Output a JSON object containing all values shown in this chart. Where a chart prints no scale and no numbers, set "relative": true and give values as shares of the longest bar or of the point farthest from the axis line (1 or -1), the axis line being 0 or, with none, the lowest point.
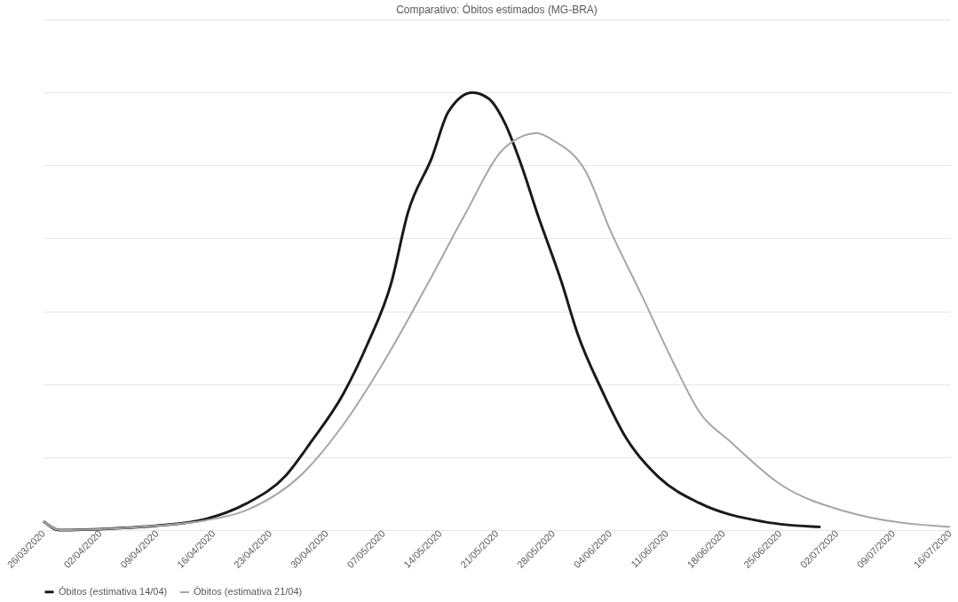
{
  "chart_data": {
    "type": "line",
    "title": "Comparativo: Óbitos estimados (MG-BRA)",
    "relative": true,
    "grid": "y",
    "legend": "bottom",
    "line_style": "solid",
    "marker": "none",
    "xlim": [
      "2020-03-26",
      "2020-07-16"
    ],
    "xticks": [
      {
        "value": "2020-03-26",
        "label": "26/03/2020"
      },
      {
        "value": "2020-04-02",
        "label": "02/04/2020"
      },
      {
        "value": "2020-04-09",
        "label": "09/04/2020"
      },
      {
        "value": "2020-04-16",
        "label": "16/04/2020"
      },
      {
        "value": "2020-04-23",
        "label": "23/04/2020"
      },
      {
        "value": "2020-04-30",
        "label": "30/04/2020"
      },
      {
        "value": "2020-05-07",
        "label": "07/05/2020"
      },
      {
        "value": "2020-05-14",
        "label": "14/05/2020"
      },
      {
        "value": "2020-05-21",
        "label": "21/05/2020"
      },
      {
        "value": "2020-05-28",
        "label": "28/05/2020"
      },
      {
        "value": "2020-06-04",
        "label": "04/06/2020"
      },
      {
        "value": "2020-06-11",
        "label": "11/06/2020"
      },
      {
        "value": "2020-06-18",
        "label": "18/06/2020"
      },
      {
        "value": "2020-06-25",
        "label": "25/06/2020"
      },
      {
        "value": "2020-07-02",
        "label": "02/07/2020"
      },
      {
        "value": "2020-07-09",
        "label": "09/07/2020"
      },
      {
        "value": "2020-07-16",
        "label": "16/07/2020"
      }
    ],
    "series": [
      {
        "name": "Óbitos (estimativa 14/04)",
        "color": "#1a1a1a",
        "x": [
          "2020-03-26",
          "2020-03-28",
          "2020-04-03",
          "2020-04-09",
          "2020-04-15",
          "2020-04-20",
          "2020-04-25",
          "2020-04-28",
          "2020-05-02",
          "2020-05-05",
          "2020-05-08",
          "2020-05-10",
          "2020-05-13",
          "2020-05-15",
          "2020-05-18",
          "2020-05-20",
          "2020-05-22",
          "2020-05-24",
          "2020-05-26",
          "2020-05-29",
          "2020-05-31",
          "2020-06-03",
          "2020-06-06",
          "2020-06-10",
          "2020-06-15",
          "2020-06-23",
          "2020-06-30"
        ],
        "values": [
          0.02,
          0.0,
          0.003,
          0.01,
          0.025,
          0.06,
          0.126,
          0.2,
          0.31,
          0.424,
          0.567,
          0.724,
          0.852,
          0.955,
          1.0,
          0.986,
          0.93,
          0.836,
          0.724,
          0.567,
          0.448,
          0.319,
          0.21,
          0.121,
          0.062,
          0.019,
          0.007
        ]
      },
      {
        "name": "Óbitos (estimativa 21/04)",
        "color": "#a6a6a6",
        "x": [
          "2020-03-26",
          "2020-03-28",
          "2020-04-03",
          "2020-04-09",
          "2020-04-15",
          "2020-04-20",
          "2020-04-27",
          "2020-05-02",
          "2020-05-07",
          "2020-05-13",
          "2020-05-17",
          "2020-05-22",
          "2020-05-26",
          "2020-05-28",
          "2020-06-01",
          "2020-06-04",
          "2020-06-08",
          "2020-06-12",
          "2020-06-15",
          "2020-06-19",
          "2020-06-25",
          "2020-07-03",
          "2020-07-16"
        ],
        "values": [
          0.02,
          0.0,
          0.003,
          0.01,
          0.022,
          0.045,
          0.129,
          0.24,
          0.383,
          0.581,
          0.719,
          0.874,
          0.907,
          0.89,
          0.819,
          0.686,
          0.533,
          0.376,
          0.271,
          0.2,
          0.105,
          0.043,
          0.007
        ]
      }
    ]
  }
}
